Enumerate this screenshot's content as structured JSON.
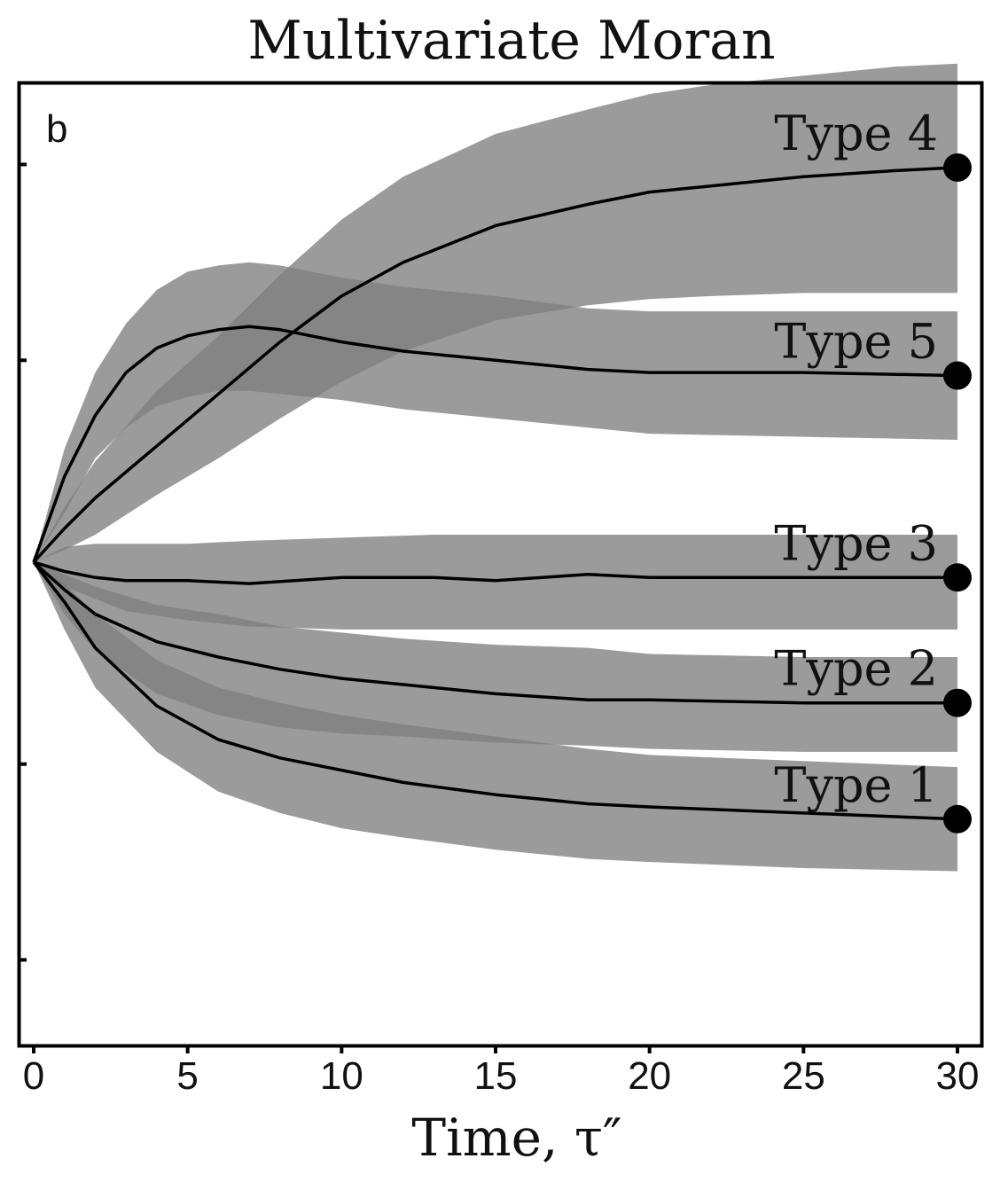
{
  "chart_data": {
    "type": "line",
    "title": "Multivariate Moran",
    "panel_label": "b",
    "xlabel": "Time, τ″",
    "ylabel": "",
    "xlim": [
      0,
      30
    ],
    "ylim": [
      -1.25,
      1.25
    ],
    "x_ticks": [
      0,
      5,
      10,
      15,
      20,
      25,
      30
    ],
    "y_ticks_labeled": false,
    "band_color": "#7f7f7f",
    "overlap_color": "#3c3c3c",
    "line_color": "#000000",
    "series": [
      {
        "name": "Type 4",
        "x": [
          0,
          1,
          2,
          4,
          6,
          8,
          10,
          12,
          15,
          18,
          20,
          22,
          25,
          28,
          30
        ],
        "mean": [
          0,
          0.11,
          0.21,
          0.38,
          0.55,
          0.72,
          0.87,
          0.98,
          1.1,
          1.17,
          1.21,
          1.23,
          1.26,
          1.28,
          1.29
        ],
        "lower": [
          0,
          0.04,
          0.09,
          0.22,
          0.34,
          0.47,
          0.59,
          0.69,
          0.79,
          0.84,
          0.86,
          0.87,
          0.88,
          0.88,
          0.88
        ],
        "upper": [
          0,
          0.18,
          0.33,
          0.56,
          0.74,
          0.94,
          1.12,
          1.26,
          1.4,
          1.48,
          1.53,
          1.56,
          1.59,
          1.62,
          1.63
        ]
      },
      {
        "name": "Type 5",
        "x": [
          0,
          1,
          2,
          3,
          4,
          5,
          6,
          7,
          8,
          10,
          12,
          15,
          18,
          20,
          25,
          30
        ],
        "mean": [
          0,
          0.28,
          0.48,
          0.62,
          0.7,
          0.74,
          0.76,
          0.77,
          0.76,
          0.72,
          0.69,
          0.66,
          0.63,
          0.62,
          0.62,
          0.61
        ],
        "lower": [
          0,
          0.16,
          0.34,
          0.44,
          0.51,
          0.54,
          0.56,
          0.56,
          0.55,
          0.53,
          0.5,
          0.47,
          0.44,
          0.42,
          0.41,
          0.4
        ],
        "upper": [
          0,
          0.37,
          0.62,
          0.78,
          0.89,
          0.95,
          0.97,
          0.98,
          0.97,
          0.93,
          0.9,
          0.87,
          0.83,
          0.82,
          0.82,
          0.82
        ]
      },
      {
        "name": "Type 3",
        "x": [
          0,
          1,
          2,
          3,
          5,
          7,
          10,
          13,
          15,
          18,
          20,
          25,
          30
        ],
        "mean": [
          0,
          -0.03,
          -0.05,
          -0.06,
          -0.06,
          -0.07,
          -0.05,
          -0.05,
          -0.06,
          -0.04,
          -0.05,
          -0.05,
          -0.05
        ],
        "lower": [
          0,
          -0.08,
          -0.12,
          -0.16,
          -0.19,
          -0.21,
          -0.22,
          -0.22,
          -0.22,
          -0.22,
          -0.22,
          -0.22,
          -0.22
        ],
        "upper": [
          0,
          0.05,
          0.06,
          0.06,
          0.06,
          0.07,
          0.08,
          0.09,
          0.09,
          0.09,
          0.09,
          0.09,
          0.09
        ]
      },
      {
        "name": "Type 2",
        "x": [
          0,
          1,
          2,
          4,
          6,
          8,
          10,
          12,
          15,
          18,
          20,
          25,
          30
        ],
        "mean": [
          0,
          -0.09,
          -0.17,
          -0.26,
          -0.31,
          -0.35,
          -0.38,
          -0.4,
          -0.43,
          -0.45,
          -0.45,
          -0.46,
          -0.46
        ],
        "lower": [
          0,
          -0.17,
          -0.29,
          -0.43,
          -0.5,
          -0.54,
          -0.56,
          -0.57,
          -0.59,
          -0.6,
          -0.61,
          -0.62,
          -0.62
        ],
        "upper": [
          0,
          -0.04,
          -0.08,
          -0.14,
          -0.17,
          -0.21,
          -0.23,
          -0.25,
          -0.27,
          -0.28,
          -0.3,
          -0.31,
          -0.31
        ]
      },
      {
        "name": "Type 1",
        "x": [
          0,
          1,
          2,
          4,
          6,
          8,
          10,
          12,
          15,
          18,
          20,
          25,
          30
        ],
        "mean": [
          0,
          -0.13,
          -0.28,
          -0.47,
          -0.58,
          -0.64,
          -0.68,
          -0.72,
          -0.76,
          -0.79,
          -0.8,
          -0.82,
          -0.84
        ],
        "lower": [
          0,
          -0.22,
          -0.41,
          -0.62,
          -0.75,
          -0.82,
          -0.87,
          -0.9,
          -0.94,
          -0.97,
          -0.98,
          -1.0,
          -1.01
        ],
        "upper": [
          0,
          -0.07,
          -0.17,
          -0.32,
          -0.41,
          -0.46,
          -0.5,
          -0.53,
          -0.57,
          -0.61,
          -0.63,
          -0.65,
          -0.67
        ]
      }
    ]
  }
}
